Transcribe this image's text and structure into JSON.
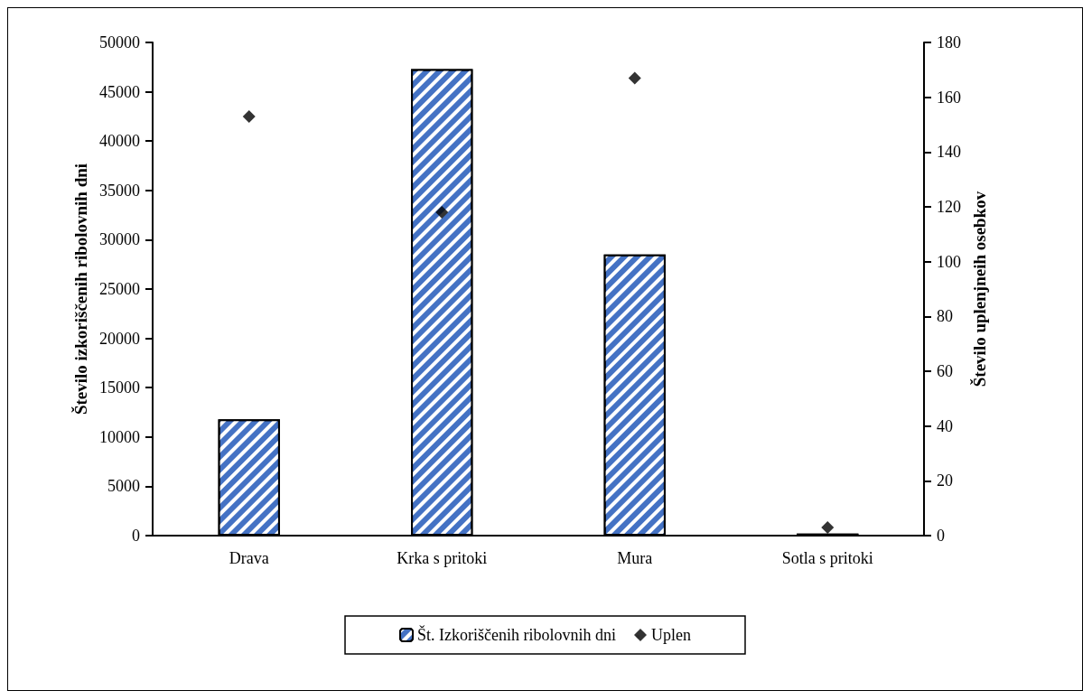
{
  "chart_data": {
    "type": "bar",
    "categories": [
      "Drava",
      "Krka s pritoki",
      "Mura",
      "Sotla s pritoki"
    ],
    "ylabel": "Število izkoriščenih ribolovnih dni",
    "y2label": "Število uplenjneih osebkov",
    "series": [
      {
        "name": "Št. Izkoriščenih ribolovnih dni",
        "color": "#4472c4",
        "values": [
          11800,
          47300,
          28500,
          200
        ]
      },
      {
        "name": "Uplen",
        "type": "scatter",
        "axis": "y2",
        "color": "#000000",
        "marker": "diamond",
        "values": [
          153,
          118,
          167,
          3
        ]
      }
    ],
    "ylim": [
      0,
      50000
    ],
    "yticks": [
      0,
      5000,
      10000,
      15000,
      20000,
      25000,
      30000,
      35000,
      40000,
      45000,
      50000
    ],
    "y2lim": [
      0,
      180
    ],
    "y2ticks": [
      0,
      20,
      40,
      60,
      80,
      100,
      120,
      140,
      160,
      180
    ],
    "grid": false,
    "legend": "bottom"
  }
}
